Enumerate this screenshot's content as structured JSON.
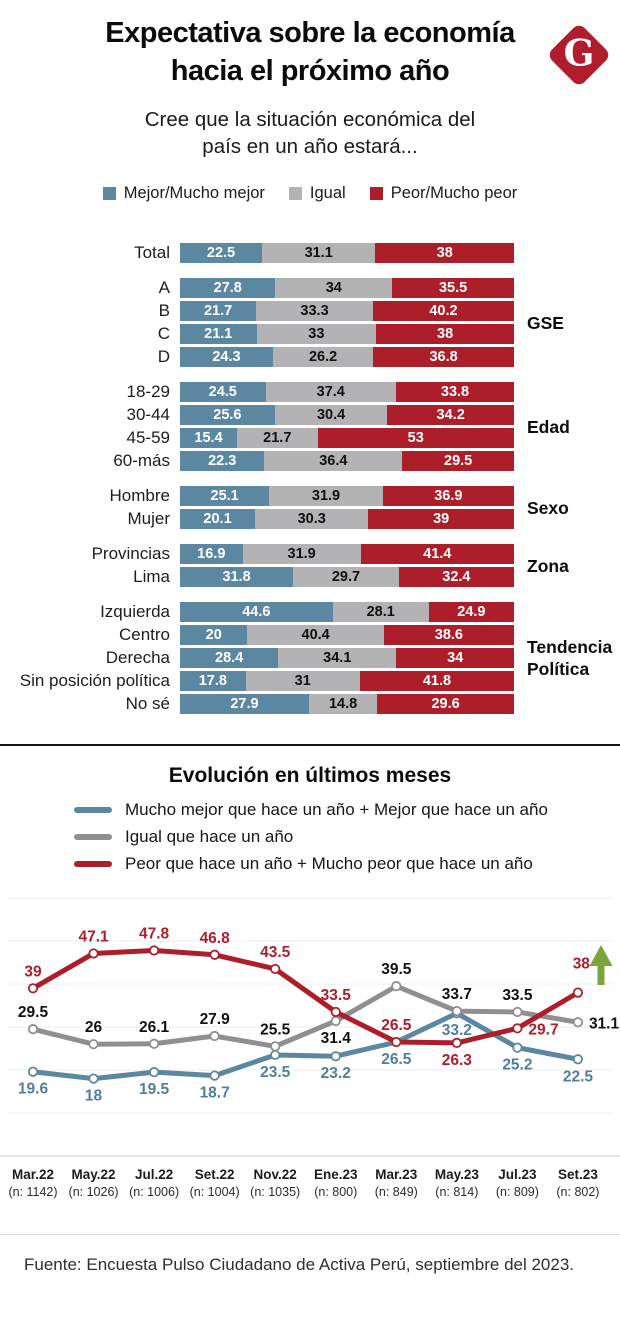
{
  "header": {
    "title_line1": "Expectativa sobre la economía",
    "title_line2": "hacia el próximo año",
    "logo_letter": "G",
    "subtitle": "Cree que la situación económica del país en un año estará..."
  },
  "colors": {
    "better_blue": "#5C87A0",
    "equal_gray_bar": "#B3B3B5",
    "equal_gray_line": "#8F8F91",
    "worse_red": "#AD1E2B",
    "arrow_green": "#7CA43C",
    "label_blue": "#527E9B",
    "label_black": "#111111",
    "label_red": "#AD1E2B"
  },
  "bar_chart_legend": [
    {
      "label": "Mejor/Mucho mejor",
      "color": "#5C87A0"
    },
    {
      "label": "Igual",
      "color": "#B3B3B5"
    },
    {
      "label": "Peor/Mucho peor",
      "color": "#AD1E2B"
    }
  ],
  "chart_data": [
    {
      "type": "bar",
      "stacked": true,
      "orientation": "horizontal",
      "normalized_to_row_total": true,
      "series_names": [
        "Mejor/Mucho mejor",
        "Igual",
        "Peor/Mucho peor"
      ],
      "groups": [
        {
          "label": "",
          "rows": [
            {
              "category": "Total",
              "values": [
                22.5,
                31.1,
                38
              ]
            }
          ]
        },
        {
          "label": "GSE",
          "rows": [
            {
              "category": "A",
              "values": [
                27.8,
                34,
                35.5
              ]
            },
            {
              "category": "B",
              "values": [
                21.7,
                33.3,
                40.2
              ]
            },
            {
              "category": "C",
              "values": [
                21.1,
                33,
                38
              ]
            },
            {
              "category": "D",
              "values": [
                24.3,
                26.2,
                36.8
              ]
            }
          ]
        },
        {
          "label": "Edad",
          "rows": [
            {
              "category": "18-29",
              "values": [
                24.5,
                37.4,
                33.8
              ]
            },
            {
              "category": "30-44",
              "values": [
                25.6,
                30.4,
                34.2
              ]
            },
            {
              "category": "45-59",
              "values": [
                15.4,
                21.7,
                53
              ]
            },
            {
              "category": "60-más",
              "values": [
                22.3,
                36.4,
                29.5
              ]
            }
          ]
        },
        {
          "label": "Sexo",
          "rows": [
            {
              "category": "Hombre",
              "values": [
                25.1,
                31.9,
                36.9
              ]
            },
            {
              "category": "Mujer",
              "values": [
                20.1,
                30.3,
                39
              ]
            }
          ]
        },
        {
          "label": "Zona",
          "rows": [
            {
              "category": "Provincias",
              "values": [
                16.9,
                31.9,
                41.4
              ]
            },
            {
              "category": "Lima",
              "values": [
                31.8,
                29.7,
                32.4
              ]
            }
          ]
        },
        {
          "label": "Tendencia Política",
          "rows": [
            {
              "category": "Izquierda",
              "values": [
                44.6,
                28.1,
                24.9
              ]
            },
            {
              "category": "Centro",
              "values": [
                20,
                40.4,
                38.6
              ]
            },
            {
              "category": "Derecha",
              "values": [
                28.4,
                34.1,
                34
              ]
            },
            {
              "category": "Sin posición política",
              "values": [
                17.8,
                31,
                41.8
              ]
            },
            {
              "category": "No sé",
              "values": [
                27.9,
                14.8,
                29.6
              ]
            }
          ]
        }
      ]
    },
    {
      "type": "line",
      "title": "Evolución en últimos meses",
      "x_labels": [
        "Mar.22",
        "May.22",
        "Jul.22",
        "Set.22",
        "Nov.22",
        "Ene.23",
        "Mar.23",
        "May.23",
        "Jul.23",
        "Set.23"
      ],
      "n_labels": [
        "(n: 1142)",
        "(n: 1026)",
        "(n: 1006)",
        "(n: 1004)",
        "(n: 1035)",
        "(n: 800)",
        "(n: 849)",
        "(n: 814)",
        "(n: 809)",
        "(n: 802)"
      ],
      "ylim": [
        0,
        62
      ],
      "grid": {
        "horizontal_every": 10
      },
      "legend_position": "top-left",
      "series": [
        {
          "name": "Mucho mejor que hace un año + Mejor que hace un año",
          "color": "#5C87A0",
          "label_color": "#527E9B",
          "values": [
            19.6,
            18,
            19.5,
            18.7,
            23.5,
            23.2,
            26.5,
            33.2,
            25.2,
            22.5
          ],
          "label_pos": [
            "below",
            "below",
            "below",
            "below",
            "below",
            "below",
            "below",
            "below",
            "below",
            "below"
          ]
        },
        {
          "name": "Igual que hace un año",
          "color": "#8F8F91",
          "label_color": "#111111",
          "values": [
            29.5,
            26,
            26.1,
            27.9,
            25.5,
            31.4,
            39.5,
            33.7,
            33.5,
            31.1
          ],
          "label_pos": [
            "above",
            "above",
            "above",
            "above",
            "above",
            "below",
            "above",
            "above",
            "above",
            "right"
          ]
        },
        {
          "name": "Peor que hace un año + Mucho peor que hace un año",
          "color": "#AD1E2B",
          "label_color": "#AD1E2B",
          "values": [
            39,
            47.1,
            47.8,
            46.8,
            43.5,
            33.5,
            26.5,
            26.3,
            29.7,
            38
          ],
          "label_pos": [
            "above",
            "above",
            "above",
            "above",
            "above",
            "above",
            "above",
            "below",
            "right",
            "arrow-side"
          ],
          "end_annotation": "up-arrow"
        }
      ]
    }
  ],
  "footer": {
    "source": "Fuente: Encuesta Pulso Ciudadano de Activa Perú, septiembre del 2023."
  }
}
